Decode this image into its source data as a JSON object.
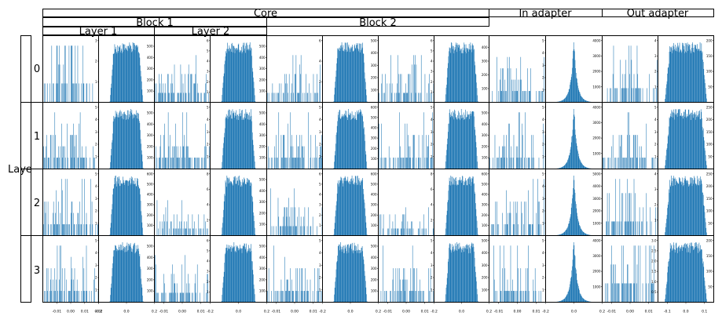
{
  "header": {
    "core": "Core",
    "in_adapter": "In adapter",
    "out_adapter": "Out adapter",
    "block1": "Block 1",
    "block2": "Block 2",
    "layer1": "Layer 1",
    "layer2": "Layer 2",
    "row_axis_label": "Laye",
    "row_labels": [
      "0",
      "1",
      "2",
      "3"
    ]
  },
  "chart_data": {
    "type": "bar",
    "title": "",
    "subtitle": "",
    "layout": "grid of histograms, 4 rows x 12 columns",
    "bar_color": "#1f77b4",
    "grid": false,
    "legend": "none",
    "rows": [
      "0",
      "1",
      "2",
      "3"
    ],
    "column_groups": [
      {
        "name": "Core",
        "children": [
          "Block 1",
          "Block 2"
        ]
      },
      {
        "name": "In adapter"
      },
      {
        "name": "Out adapter"
      }
    ],
    "columns": [
      {
        "group": "Core / Block 1 / Layer 1",
        "kind": "sparse",
        "xlim": [
          -0.02,
          0.02
        ],
        "xticks": [
          "-0.01",
          "0.00",
          "0.01",
          "0.02"
        ]
      },
      {
        "group": "Core / Block 1 / Layer 1",
        "kind": "dense",
        "xlim": [
          -0.2,
          0.2
        ],
        "xticks": [
          "-0.2",
          "0.0",
          "0.2"
        ]
      },
      {
        "group": "Core / Block 1 / Layer 2",
        "kind": "sparse",
        "xlim": [
          -0.015,
          0.015
        ],
        "xticks": [
          "-0.01",
          "0.00",
          "0.01"
        ]
      },
      {
        "group": "Core / Block 1 / Layer 2",
        "kind": "dense",
        "xlim": [
          -0.2,
          0.2
        ],
        "xticks": [
          "-0.2",
          "0.0",
          "0.2"
        ]
      },
      {
        "group": "Core / Block 2",
        "kind": "sparse",
        "xlim": [
          -0.015,
          0.015
        ],
        "xticks": [
          "-0.01",
          "0.00",
          "0.01"
        ]
      },
      {
        "group": "Core / Block 2",
        "kind": "dense",
        "xlim": [
          -0.2,
          0.2
        ],
        "xticks": [
          "-0.2",
          "0.0",
          "0.2"
        ]
      },
      {
        "group": "Core / Block 2",
        "kind": "sparse",
        "xlim": [
          -0.015,
          0.015
        ],
        "xticks": [
          "-0.01",
          "0.00",
          "0.01"
        ]
      },
      {
        "group": "Core / Block 2",
        "kind": "dense",
        "xlim": [
          -0.2,
          0.2
        ],
        "xticks": [
          "-0.2",
          "0.0",
          "0.2"
        ]
      },
      {
        "group": "In adapter",
        "kind": "sparse",
        "xlim": [
          -0.015,
          0.015
        ],
        "xticks": [
          "-0.01",
          "0.00",
          "0.01"
        ]
      },
      {
        "group": "In adapter",
        "kind": "peak",
        "xlim": [
          -0.2,
          0.2
        ],
        "xticks": [
          "-0.2",
          "0.0",
          "0.2"
        ]
      },
      {
        "group": "Out adapter",
        "kind": "sparse",
        "xlim": [
          -0.015,
          0.015
        ],
        "xticks": [
          "-0.01",
          "0.00",
          "0.01"
        ]
      },
      {
        "group": "Out adapter",
        "kind": "wide",
        "xlim": [
          -0.15,
          0.15
        ],
        "xticks": [
          "-0.1",
          "0.0",
          "0.1"
        ]
      }
    ],
    "ymax": [
      [
        3,
        550,
        6,
        550,
        6,
        500,
        6,
        450,
        5,
        4000,
        4,
        200
      ],
      [
        5,
        550,
        5,
        550,
        5,
        600,
        5,
        550,
        5,
        4000,
        5,
        250
      ],
      [
        5,
        600,
        8,
        550,
        6,
        600,
        8,
        600,
        5,
        5000,
        4,
        250
      ],
      [
        5,
        550,
        6,
        550,
        5,
        550,
        5,
        500,
        5,
        4000,
        3,
        200
      ]
    ],
    "yticks": [
      [
        [
          "1",
          "2",
          "3"
        ],
        [
          "100",
          "200",
          "300",
          "400",
          "500"
        ],
        [
          "1",
          "2",
          "3",
          "4",
          "5",
          "6"
        ],
        [
          "100",
          "200",
          "300",
          "400",
          "500"
        ],
        [
          "2",
          "4",
          "6"
        ],
        [
          "100",
          "200",
          "300",
          "400",
          "500"
        ],
        [
          "1",
          "2",
          "3",
          "4",
          "5",
          "6"
        ],
        [
          "100",
          "200",
          "300",
          "400"
        ],
        [
          "1",
          "2",
          "3",
          "4",
          "5"
        ],
        [
          "1000",
          "2000",
          "3000",
          "4000"
        ],
        [
          "1",
          "2",
          "3",
          "4"
        ],
        [
          "50",
          "100",
          "150",
          "200"
        ]
      ],
      [
        [
          "1",
          "2",
          "3",
          "4",
          "5"
        ],
        [
          "100",
          "200",
          "300",
          "400",
          "500"
        ],
        [
          "1",
          "2",
          "3",
          "4",
          "5"
        ],
        [
          "100",
          "200",
          "300",
          "400",
          "500"
        ],
        [
          "1",
          "2",
          "3",
          "4",
          "5"
        ],
        [
          "100",
          "200",
          "300",
          "400",
          "500",
          "600"
        ],
        [
          "1",
          "2",
          "3",
          "4",
          "5"
        ],
        [
          "100",
          "200",
          "300",
          "400",
          "500"
        ],
        [
          "1",
          "2",
          "3",
          "4",
          "5"
        ],
        [
          "1000",
          "2000",
          "3000",
          "4000"
        ],
        [
          "1",
          "2",
          "3",
          "4",
          "5"
        ],
        [
          "50",
          "100",
          "150",
          "200",
          "250"
        ]
      ],
      [
        [
          "1",
          "2",
          "3",
          "4",
          "5"
        ],
        [
          "100",
          "200",
          "300",
          "400",
          "500",
          "600"
        ],
        [
          "2",
          "4",
          "6",
          "8"
        ],
        [
          "100",
          "200",
          "300",
          "400",
          "500"
        ],
        [
          "1",
          "2",
          "3",
          "4",
          "5",
          "6"
        ],
        [
          "100",
          "200",
          "300",
          "400",
          "500",
          "600"
        ],
        [
          "2",
          "4",
          "6",
          "8"
        ],
        [
          "100",
          "200",
          "300",
          "400",
          "500",
          "600"
        ],
        [
          "1",
          "2",
          "3",
          "4",
          "5"
        ],
        [
          "1000",
          "2000",
          "3000",
          "4000",
          "5000"
        ],
        [
          "1",
          "2",
          "3",
          "4"
        ],
        [
          "50",
          "100",
          "150",
          "200",
          "250"
        ]
      ],
      [
        [
          "1",
          "2",
          "3",
          "4",
          "5"
        ],
        [
          "100",
          "200",
          "300",
          "400",
          "500"
        ],
        [
          "1",
          "2",
          "3",
          "4",
          "5",
          "6"
        ],
        [
          "100",
          "200",
          "300",
          "400",
          "500"
        ],
        [
          "1",
          "2",
          "3",
          "4",
          "5"
        ],
        [
          "100",
          "200",
          "300",
          "400",
          "500"
        ],
        [
          "1",
          "2",
          "3",
          "4",
          "5"
        ],
        [
          "100",
          "200",
          "300",
          "400",
          "500"
        ],
        [
          "1",
          "2",
          "3",
          "4",
          "5"
        ],
        [
          "1000",
          "2000",
          "3000",
          "4000"
        ],
        [
          "0.5",
          "1.0",
          "1.5",
          "2.0",
          "2.5",
          "3.0"
        ],
        [
          "50",
          "100",
          "150",
          "200"
        ]
      ]
    ]
  }
}
